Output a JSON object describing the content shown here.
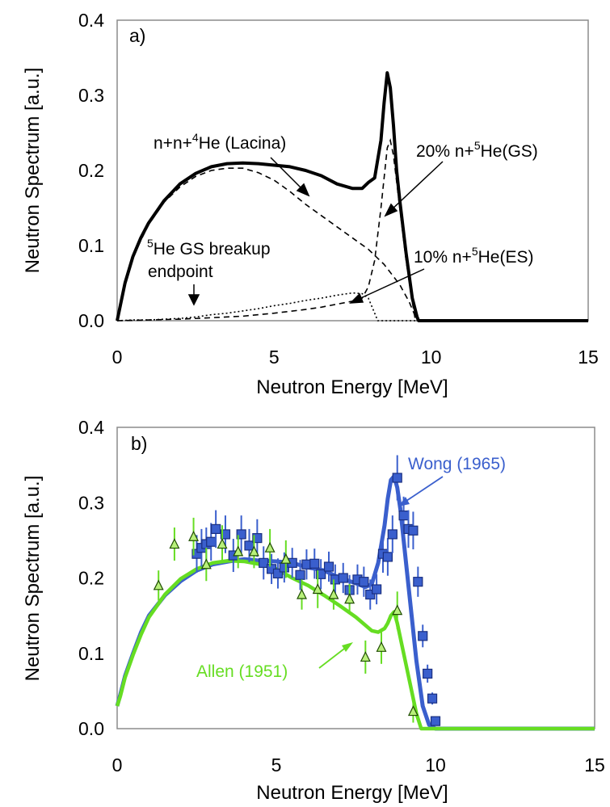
{
  "chart_data": [
    {
      "panel": "a)",
      "type": "line",
      "xlabel": "Neutron Energy  [MeV]",
      "ylabel": "Neutron Spectrum [a.u.]",
      "xlim": [
        0,
        15
      ],
      "ylim": [
        0,
        0.4
      ],
      "xticks": [
        "0",
        "5",
        "10",
        "15"
      ],
      "yticks": [
        "0.0",
        "0.1",
        "0.2",
        "0.3",
        "0.4"
      ],
      "grid": false,
      "legend": "none",
      "series": [
        {
          "name": "",
          "style": "solid-thick",
          "x": [
            0,
            0.1,
            0.25,
            0.5,
            0.75,
            1.0,
            1.5,
            2.0,
            2.5,
            3.0,
            3.5,
            4.0,
            4.5,
            5.0,
            5.5,
            6.0,
            6.5,
            7.0,
            7.5,
            7.8,
            8.0,
            8.2,
            8.4,
            8.5,
            8.6,
            8.7,
            8.8,
            8.9,
            9.0,
            9.2,
            9.4,
            9.55,
            9.6,
            10.5,
            15
          ],
          "y": [
            0.0,
            0.02,
            0.05,
            0.085,
            0.11,
            0.13,
            0.16,
            0.182,
            0.196,
            0.205,
            0.209,
            0.21,
            0.209,
            0.207,
            0.205,
            0.2,
            0.193,
            0.182,
            0.176,
            0.176,
            0.184,
            0.19,
            0.24,
            0.29,
            0.33,
            0.31,
            0.26,
            0.2,
            0.16,
            0.09,
            0.03,
            0.005,
            0.0,
            0.0,
            0.0
          ]
        },
        {
          "name": "n+n+4He (Lacina)",
          "style": "dashed",
          "x": [
            0,
            0.25,
            0.5,
            1.0,
            1.5,
            2.0,
            2.5,
            3.0,
            3.5,
            4.0,
            4.5,
            5.0,
            5.5,
            6.0,
            6.5,
            7.0,
            7.5,
            8.0,
            8.5,
            9.0,
            9.3,
            9.55
          ],
          "y": [
            0.0,
            0.05,
            0.085,
            0.128,
            0.158,
            0.178,
            0.192,
            0.2,
            0.203,
            0.203,
            0.197,
            0.187,
            0.172,
            0.155,
            0.14,
            0.125,
            0.11,
            0.095,
            0.075,
            0.048,
            0.025,
            0.0
          ]
        },
        {
          "name": "20% n+5He(GS)",
          "style": "dashed",
          "x": [
            0,
            1,
            2,
            3,
            4,
            5,
            6,
            6.5,
            7.0,
            7.5,
            7.8,
            8.0,
            8.2,
            8.4,
            8.6,
            8.7,
            8.8,
            9.0,
            9.2,
            9.4,
            9.5,
            15
          ],
          "y": [
            0.0,
            0.001,
            0.002,
            0.004,
            0.006,
            0.01,
            0.015,
            0.018,
            0.022,
            0.026,
            0.03,
            0.045,
            0.08,
            0.15,
            0.23,
            0.24,
            0.22,
            0.15,
            0.08,
            0.025,
            0.0,
            0.0
          ]
        },
        {
          "name": "10% n+5He(ES)",
          "style": "dotted",
          "x": [
            0,
            0.5,
            1,
            1.5,
            2,
            2.5,
            3,
            3.5,
            4,
            4.5,
            5,
            5.5,
            6,
            6.5,
            7,
            7.5,
            7.8,
            8.0,
            8.15,
            8.3,
            15
          ],
          "y": [
            0.0,
            0.001,
            0.001,
            0.002,
            0.003,
            0.005,
            0.008,
            0.01,
            0.013,
            0.016,
            0.02,
            0.023,
            0.027,
            0.03,
            0.034,
            0.037,
            0.036,
            0.03,
            0.015,
            0.0,
            0.0
          ]
        }
      ],
      "annotations": {
        "lacina": [
          "n+n+",
          "4",
          "He (Lacina)"
        ],
        "gs": [
          "20% n+",
          "5",
          "He(GS)"
        ],
        "es": [
          "10% n+",
          "5",
          "He(ES)"
        ],
        "breakup_1": [
          "5",
          "He GS breakup"
        ],
        "breakup_2": "endpoint"
      }
    },
    {
      "panel": "b)",
      "type": "scatter",
      "xlabel": "Neutron Energy  [MeV]",
      "ylabel": "Neutron Spectrum [a.u.]",
      "xlim": [
        0,
        15
      ],
      "ylim": [
        0,
        0.4
      ],
      "xticks": [
        "0",
        "5",
        "10",
        "15"
      ],
      "yticks": [
        "0.0",
        "0.1",
        "0.2",
        "0.3",
        "0.4"
      ],
      "grid": false,
      "legend": "none",
      "series": [
        {
          "name": "Wong (1965)",
          "color": "#3a5fcd",
          "curve": {
            "x": [
              0,
              0.1,
              0.25,
              0.5,
              0.75,
              1.0,
              1.5,
              2.0,
              2.5,
              3.0,
              3.5,
              4.0,
              4.5,
              5.0,
              5.5,
              6.0,
              6.5,
              7.0,
              7.5,
              7.8,
              8.0,
              8.2,
              8.4,
              8.5,
              8.6,
              8.7,
              8.8,
              8.9,
              9.0,
              9.2,
              9.4,
              9.6,
              9.8,
              10.0,
              15
            ],
            "y": [
              0.03,
              0.045,
              0.07,
              0.1,
              0.128,
              0.15,
              0.177,
              0.196,
              0.21,
              0.218,
              0.222,
              0.225,
              0.223,
              0.222,
              0.22,
              0.214,
              0.21,
              0.2,
              0.193,
              0.188,
              0.192,
              0.22,
              0.27,
              0.305,
              0.33,
              0.335,
              0.32,
              0.29,
              0.25,
              0.17,
              0.09,
              0.03,
              0.005,
              0.0,
              0.0
            ]
          },
          "points": {
            "x": [
              2.5,
              2.65,
              2.8,
              2.95,
              3.1,
              3.4,
              3.65,
              3.9,
              4.15,
              4.4,
              4.6,
              4.85,
              5.05,
              5.25,
              5.5,
              5.75,
              5.95,
              6.2,
              6.4,
              6.65,
              6.85,
              7.1,
              7.3,
              7.55,
              7.75,
              7.95,
              8.15,
              8.35,
              8.5,
              8.65,
              8.8,
              9.0,
              9.15,
              9.3,
              9.45,
              9.6,
              9.75,
              9.9,
              10.0
            ],
            "y": [
              0.232,
              0.24,
              0.245,
              0.248,
              0.265,
              0.258,
              0.23,
              0.258,
              0.243,
              0.253,
              0.22,
              0.212,
              0.206,
              0.214,
              0.22,
              0.204,
              0.218,
              0.219,
              0.205,
              0.215,
              0.198,
              0.2,
              0.184,
              0.198,
              0.195,
              0.178,
              0.185,
              0.232,
              0.228,
              0.258,
              0.333,
              0.283,
              0.265,
              0.263,
              0.195,
              0.123,
              0.073,
              0.04,
              0.01
            ],
            "err": [
              0.025,
              0.025,
              0.022,
              0.025,
              0.025,
              0.025,
              0.022,
              0.025,
              0.022,
              0.025,
              0.022,
              0.02,
              0.02,
              0.02,
              0.02,
              0.02,
              0.02,
              0.02,
              0.02,
              0.02,
              0.02,
              0.02,
              0.02,
              0.02,
              0.02,
              0.02,
              0.02,
              0.025,
              0.025,
              0.025,
              0.03,
              0.025,
              0.025,
              0.025,
              0.02,
              0.015,
              0.012,
              0.008,
              0.005
            ]
          }
        },
        {
          "name": "Allen (1951)",
          "color": "#66dd22",
          "curve": {
            "x": [
              0,
              0.1,
              0.25,
              0.5,
              0.75,
              1.0,
              1.5,
              2.0,
              2.5,
              3.0,
              3.5,
              4.0,
              4.5,
              5.0,
              5.5,
              6.0,
              6.5,
              7.0,
              7.5,
              8.0,
              8.2,
              8.4,
              8.5,
              8.6,
              8.7,
              8.8,
              9.0,
              9.2,
              9.4,
              9.55,
              9.6,
              15
            ],
            "y": [
              0.03,
              0.043,
              0.068,
              0.098,
              0.125,
              0.148,
              0.178,
              0.199,
              0.212,
              0.22,
              0.223,
              0.222,
              0.218,
              0.212,
              0.2,
              0.19,
              0.177,
              0.163,
              0.148,
              0.13,
              0.128,
              0.133,
              0.14,
              0.15,
              0.155,
              0.14,
              0.1,
              0.06,
              0.02,
              0.0,
              0.0,
              0.0
            ]
          },
          "points": {
            "x": [
              1.3,
              1.8,
              2.4,
              2.8,
              3.3,
              3.8,
              4.3,
              4.8,
              5.3,
              5.8,
              6.3,
              6.8,
              7.3,
              7.8,
              8.3,
              8.8,
              9.3
            ],
            "y": [
              0.19,
              0.245,
              0.255,
              0.218,
              0.245,
              0.235,
              0.235,
              0.24,
              0.225,
              0.178,
              0.185,
              0.178,
              0.172,
              0.095,
              0.108,
              0.157,
              0.023
            ],
            "err": [
              0.02,
              0.022,
              0.025,
              0.022,
              0.025,
              0.022,
              0.022,
              0.025,
              0.025,
              0.02,
              0.025,
              0.02,
              0.02,
              0.022,
              0.022,
              0.025,
              0.015
            ]
          }
        }
      ]
    }
  ]
}
